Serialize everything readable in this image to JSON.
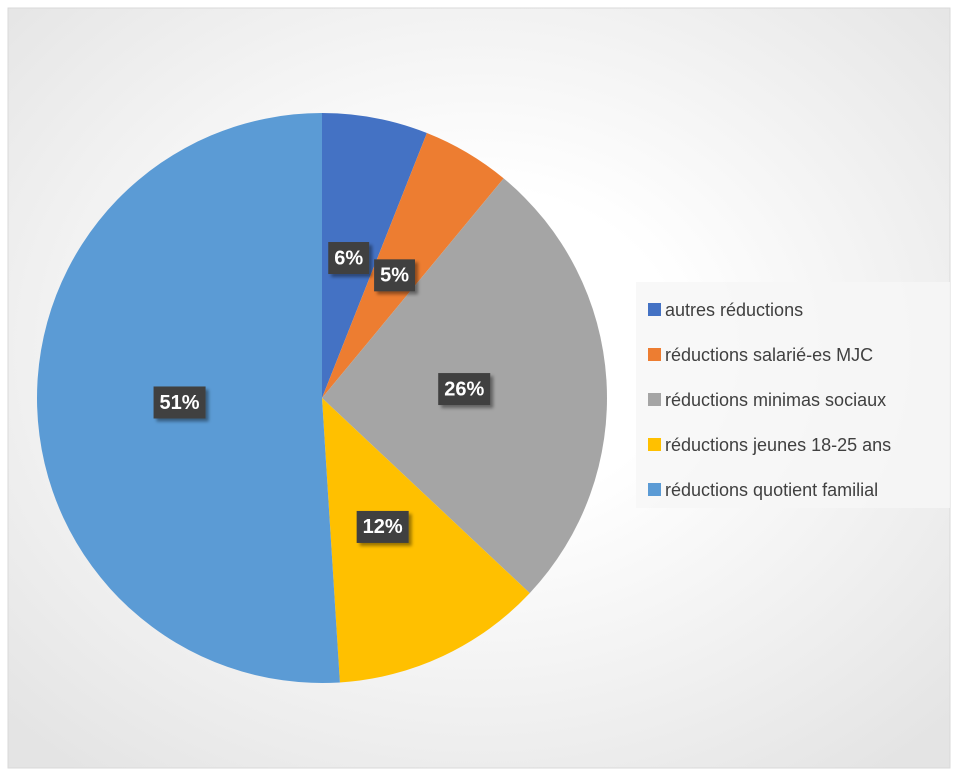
{
  "chart_data": {
    "type": "pie",
    "categories": [
      "autres réductions",
      "réductions salarié-es MJC",
      "réductions minimas sociaux",
      "réductions jeunes 18-25 ans",
      "réductions quotient familial"
    ],
    "values": [
      6,
      5,
      26,
      12,
      51
    ],
    "value_labels": [
      "6%",
      "5%",
      "26%",
      "12%",
      "51%"
    ],
    "colors": [
      "#4472c4",
      "#ed7d31",
      "#a5a5a5",
      "#ffc000",
      "#5b9bd5"
    ],
    "legend": "right"
  }
}
